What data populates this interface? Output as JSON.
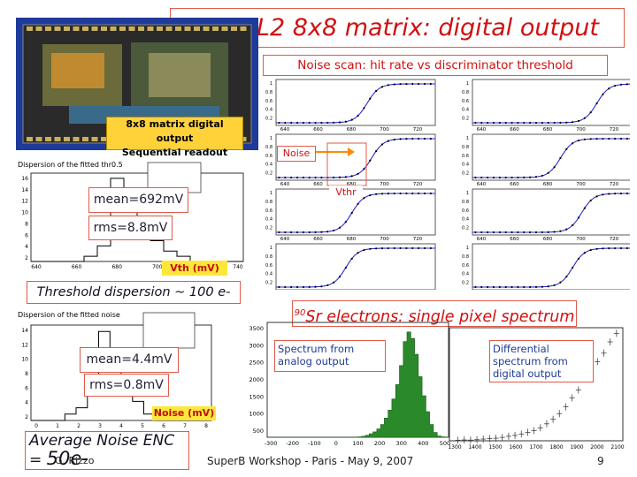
{
  "slide": {
    "title": "APSEL2 8x8 matrix: digital output",
    "noise_scan_caption": "Noise scan: hit rate vs discriminator threshold",
    "chip_caption_line1": "8x8 matrix digital output",
    "chip_caption_line2": "Sequential readout",
    "noise_tag": "Noise",
    "vthr_tag": "Vthr",
    "threshold_hist": {
      "title": "Dispersion of the fitted thr0.5",
      "mean_label": "mean=692mV",
      "rms_label": "rms=8.8mV",
      "axis_label": "Vth (mV)",
      "summary": "Threshold dispersion ~ 100 e-"
    },
    "noise_hist": {
      "title": "Dispersion of the fitted noise",
      "mean_label": "mean=4.4mV",
      "rms_label": "rms=0.8mV",
      "axis_label": "Noise (mV)",
      "summary_line1": "Average Noise ENC",
      "summary_line2_prefix": "=",
      "summary_line2_value": "50e-"
    },
    "spectrum": {
      "title_sup": "90",
      "title_rest": "Sr electrons: single pixel spectrum",
      "analog_label": "Spectrum from analog output",
      "digital_label": "Differential spectrum from digital output"
    },
    "footer": {
      "author": "G. Rizzo",
      "event": "SuperB Workshop - Paris - May 9, 2007",
      "page": "9"
    }
  },
  "colors": {
    "title_red": "#d01010",
    "border_red": "#e05a4a",
    "chip_blue": "#1e3a9a",
    "fit_blue": "#2a2ad8"
  },
  "chart_data": [
    {
      "type": "line",
      "name": "noise-scan-curves",
      "x_ticks": [
        "640",
        "660",
        "680",
        "700",
        "720"
      ],
      "y_ticks": [
        "1",
        "0.8",
        "0.6",
        "0.4",
        "0.2"
      ],
      "ylim": [
        0,
        1
      ],
      "xlim": [
        630,
        735
      ],
      "panels": [
        {
          "row": 0,
          "col": 0,
          "threshold": 690
        },
        {
          "row": 0,
          "col": 1,
          "threshold": 712
        },
        {
          "row": 1,
          "col": 0,
          "threshold": 693
        },
        {
          "row": 1,
          "col": 1,
          "threshold": 688
        },
        {
          "row": 2,
          "col": 0,
          "threshold": 680
        },
        {
          "row": 2,
          "col": 1,
          "threshold": 702
        },
        {
          "row": 3,
          "col": 0,
          "threshold": 676
        },
        {
          "row": 3,
          "col": 1,
          "threshold": 696
        }
      ]
    },
    {
      "type": "bar",
      "name": "threshold-dispersion",
      "x_ticks": [
        "640",
        "660",
        "680",
        "700",
        "720",
        "740"
      ],
      "y_ticks": [
        "16",
        "14",
        "12",
        "10",
        "8",
        "6",
        "4",
        "2"
      ],
      "values": [
        0,
        0,
        0,
        0,
        1,
        3,
        16,
        12,
        8,
        4,
        2,
        1,
        0,
        0,
        0,
        0
      ],
      "ylim": [
        0,
        17
      ]
    },
    {
      "type": "bar",
      "name": "noise-dispersion",
      "x_ticks": [
        "0",
        "1",
        "2",
        "3",
        "4",
        "5",
        "6",
        "7",
        "8"
      ],
      "y_ticks": [
        "14",
        "12",
        "10",
        "8",
        "6",
        "4",
        "2"
      ],
      "values": [
        0,
        0,
        0,
        1,
        2,
        5,
        14,
        11,
        6,
        3,
        1,
        0,
        0,
        0,
        0,
        0
      ],
      "ylim": [
        0,
        15
      ]
    },
    {
      "type": "bar",
      "name": "analog-spectrum",
      "x_ticks": [
        "-300",
        "-200",
        "-100",
        "0",
        "100",
        "200",
        "300",
        "400",
        "500"
      ],
      "y_ticks": [
        "3500",
        "3000",
        "2500",
        "2000",
        "1500",
        "1000",
        "500"
      ],
      "values": [
        0,
        0,
        0,
        0,
        0,
        0,
        0,
        0,
        0,
        0,
        0,
        0,
        0,
        0,
        0,
        0,
        0,
        0,
        0,
        0,
        0,
        0,
        0,
        0,
        10,
        30,
        60,
        110,
        170,
        260,
        400,
        600,
        850,
        1200,
        1650,
        2250,
        3000,
        3300,
        3100,
        2600,
        1900,
        1300,
        800,
        400,
        150,
        40,
        10,
        0
      ],
      "ylim": [
        0,
        3600
      ]
    },
    {
      "type": "scatter",
      "name": "digital-spectrum",
      "x_ticks": [
        "1300",
        "1400",
        "1500",
        "1600",
        "1700",
        "1800",
        "1900",
        "2000",
        "2100"
      ],
      "points": [
        [
          1330,
          10
        ],
        [
          1360,
          15
        ],
        [
          1390,
          12
        ],
        [
          1420,
          20
        ],
        [
          1450,
          30
        ],
        [
          1480,
          40
        ],
        [
          1510,
          45
        ],
        [
          1540,
          60
        ],
        [
          1570,
          80
        ],
        [
          1600,
          95
        ],
        [
          1630,
          120
        ],
        [
          1660,
          150
        ],
        [
          1690,
          180
        ],
        [
          1720,
          230
        ],
        [
          1750,
          300
        ],
        [
          1780,
          380
        ],
        [
          1810,
          480
        ],
        [
          1840,
          600
        ],
        [
          1870,
          760
        ],
        [
          1900,
          900
        ],
        [
          1930,
          1100
        ],
        [
          1960,
          1250
        ],
        [
          1990,
          1400
        ],
        [
          2020,
          1550
        ],
        [
          2050,
          1750
        ],
        [
          2080,
          1900
        ]
      ],
      "xlim": [
        1290,
        2110
      ],
      "ylim": [
        0,
        2000
      ]
    }
  ]
}
